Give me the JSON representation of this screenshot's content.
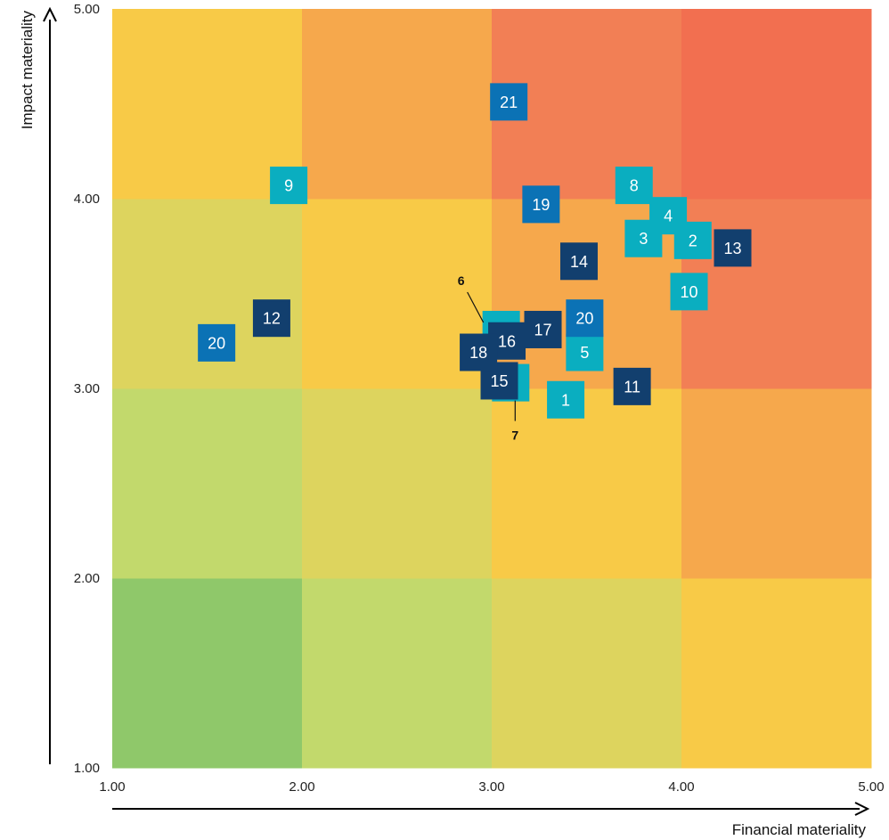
{
  "chart_data": {
    "type": "scatter",
    "xlabel": "Financial materiality",
    "ylabel": "Impact materiality",
    "xlim": [
      1,
      5
    ],
    "ylim": [
      1,
      5
    ],
    "x_ticks": [
      "1.00",
      "2.00",
      "3.00",
      "4.00",
      "5.00"
    ],
    "y_ticks": [
      "1.00",
      "2.00",
      "3.00",
      "4.00",
      "5.00"
    ],
    "heatmap_colors": [
      [
        "#8fc86a",
        "#c2d96c",
        "#ddd45e",
        "#f8ca47"
      ],
      [
        "#c2d96c",
        "#ddd45e",
        "#f8ca47",
        "#f6a84c"
      ],
      [
        "#ddd45e",
        "#f8ca47",
        "#f6a84c",
        "#f27f55"
      ],
      [
        "#f8ca47",
        "#f6a84c",
        "#f27f55",
        "#f26f50"
      ]
    ],
    "colors": {
      "teal": "#0aaec0",
      "blue": "#0b72b5",
      "navy": "#123f6e"
    },
    "points": [
      {
        "label": "1",
        "x": 3.39,
        "y": 2.94,
        "color": "teal"
      },
      {
        "label": "2",
        "x": 4.06,
        "y": 3.78,
        "color": "teal"
      },
      {
        "label": "3",
        "x": 3.8,
        "y": 3.79,
        "color": "teal"
      },
      {
        "label": "4",
        "x": 3.93,
        "y": 3.91,
        "color": "teal"
      },
      {
        "label": "5",
        "x": 3.49,
        "y": 3.19,
        "color": "teal"
      },
      {
        "label": "6",
        "x": 3.05,
        "y": 3.31,
        "color": "teal"
      },
      {
        "label": "7",
        "x": 3.1,
        "y": 3.03,
        "color": "teal"
      },
      {
        "label": "8",
        "x": 3.75,
        "y": 4.07,
        "color": "teal"
      },
      {
        "label": "9",
        "x": 1.93,
        "y": 4.07,
        "color": "teal"
      },
      {
        "label": "10",
        "x": 4.04,
        "y": 3.51,
        "color": "teal"
      },
      {
        "label": "11",
        "x": 3.74,
        "y": 3.01,
        "color": "navy"
      },
      {
        "label": "12",
        "x": 1.84,
        "y": 3.37,
        "color": "navy"
      },
      {
        "label": "13",
        "x": 4.27,
        "y": 3.74,
        "color": "navy"
      },
      {
        "label": "14",
        "x": 3.46,
        "y": 3.67,
        "color": "navy"
      },
      {
        "label": "15",
        "x": 3.04,
        "y": 3.04,
        "color": "navy"
      },
      {
        "label": "16",
        "x": 3.08,
        "y": 3.25,
        "color": "navy"
      },
      {
        "label": "17",
        "x": 3.27,
        "y": 3.31,
        "color": "navy"
      },
      {
        "label": "18",
        "x": 2.93,
        "y": 3.19,
        "color": "navy"
      },
      {
        "label": "19",
        "x": 3.26,
        "y": 3.97,
        "color": "blue"
      },
      {
        "label": "20",
        "x": 3.49,
        "y": 3.37,
        "color": "blue"
      },
      {
        "label": "20",
        "x": 1.55,
        "y": 3.24,
        "color": "blue"
      },
      {
        "label": "21",
        "x": 3.09,
        "y": 4.51,
        "color": "blue"
      }
    ],
    "callouts": [
      {
        "label": "6",
        "position": "above-left",
        "point": 5
      },
      {
        "label": "7",
        "position": "below",
        "point": 6
      }
    ]
  }
}
